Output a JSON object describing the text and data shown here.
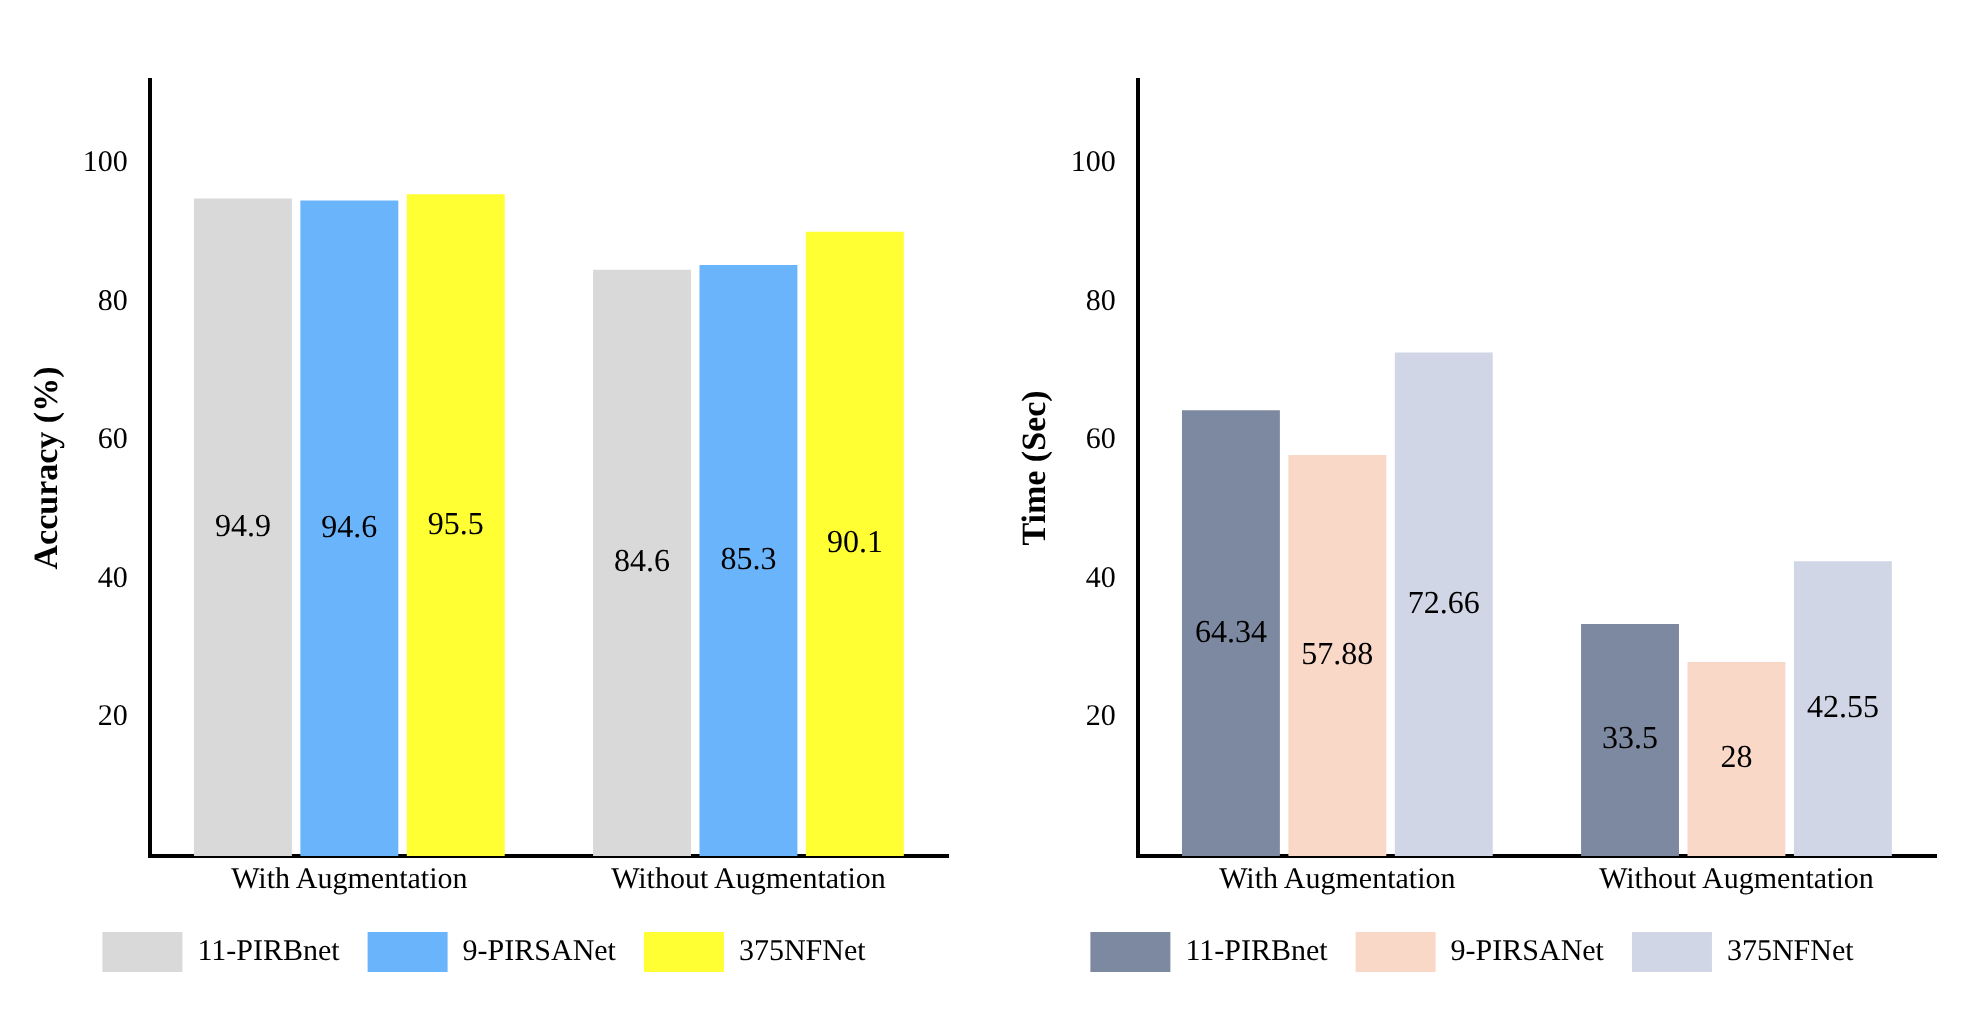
{
  "chart_data": [
    {
      "type": "bar",
      "ylabel": "Accuracy (%)",
      "categories": [
        "With Augmentation",
        "Without Augmentation"
      ],
      "series": [
        {
          "name": "11-PIRBnet",
          "color": "#d9d9d9",
          "values": [
            94.9,
            84.6
          ]
        },
        {
          "name": "9-PIRSANet",
          "color": "#6ab4fb",
          "values": [
            94.6,
            85.3
          ]
        },
        {
          "name": "375NFNet",
          "color": "#ffff33",
          "values": [
            95.5,
            90.1
          ]
        }
      ],
      "ylim": [
        0,
        112
      ],
      "yticks": [
        20,
        40,
        60,
        80,
        100
      ],
      "grid": false,
      "legend": "bottom",
      "data_labels": true
    },
    {
      "type": "bar",
      "ylabel": "Time (Sec)",
      "categories": [
        "With Augmentation",
        "Without Augmentation"
      ],
      "series": [
        {
          "name": "11-PIRBnet",
          "color": "#7d89a1",
          "values": [
            64.34,
            33.5
          ]
        },
        {
          "name": "9-PIRSANet",
          "color": "#f9d8c8",
          "values": [
            57.88,
            28
          ]
        },
        {
          "name": "375NFNet",
          "color": "#d0d6e6",
          "values": [
            72.66,
            42.55
          ]
        }
      ],
      "ylim": [
        0,
        112
      ],
      "yticks": [
        20,
        40,
        60,
        80,
        100
      ],
      "grid": false,
      "legend": "bottom",
      "data_labels": true
    }
  ]
}
